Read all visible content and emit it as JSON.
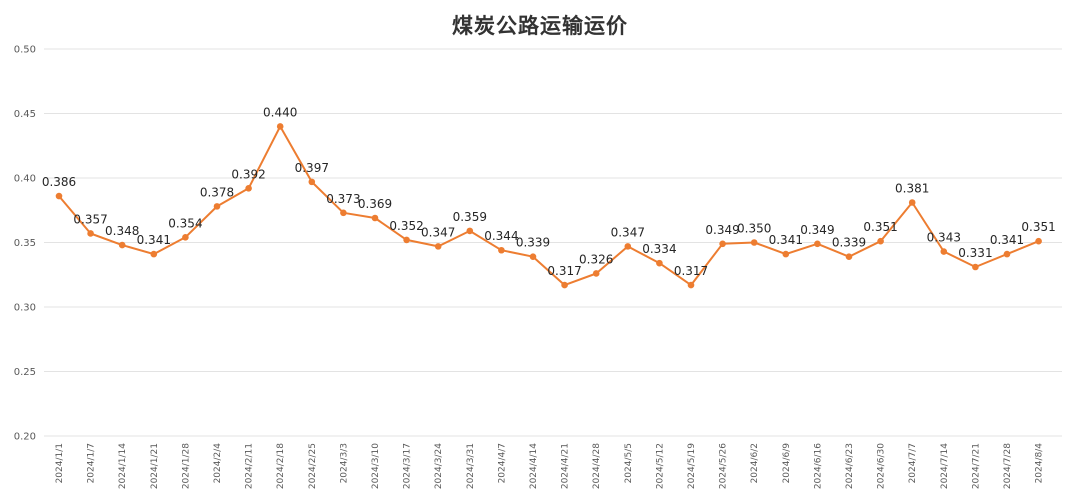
{
  "chart_data": {
    "type": "line",
    "title": "煤炭公路运输运价",
    "xlabel": "",
    "ylabel": "",
    "ylim": [
      0.2,
      0.5
    ],
    "yticks": [
      "0.50",
      "0.45",
      "0.40",
      "0.35",
      "0.30",
      "0.25",
      "0.20"
    ],
    "grid": true,
    "legend": "none",
    "color": "#ED7D31",
    "categories": [
      "2024/1/1",
      "2024/1/7",
      "2024/1/14",
      "2024/1/21",
      "2024/1/28",
      "2024/2/4",
      "2024/2/11",
      "2024/2/18",
      "2024/2/25",
      "2024/3/3",
      "2024/3/10",
      "2024/3/17",
      "2024/3/24",
      "2024/3/31",
      "2024/4/7",
      "2024/4/14",
      "2024/4/21",
      "2024/4/28",
      "2024/5/5",
      "2024/5/12",
      "2024/5/19",
      "2024/5/26",
      "2024/6/2",
      "2024/6/9",
      "2024/6/16",
      "2024/6/23",
      "2024/6/30",
      "2024/7/7",
      "2024/7/14",
      "2024/7/21",
      "2024/7/28",
      "2024/8/4"
    ],
    "values": [
      0.386,
      0.357,
      0.348,
      0.341,
      0.354,
      0.378,
      0.392,
      0.44,
      0.397,
      0.373,
      0.369,
      0.352,
      0.347,
      0.359,
      0.344,
      0.339,
      0.317,
      0.326,
      0.347,
      0.334,
      0.317,
      0.349,
      0.35,
      0.341,
      0.349,
      0.339,
      0.351,
      0.381,
      0.343,
      0.331,
      0.341,
      0.351
    ],
    "labels": [
      "0.386",
      "0.357",
      "0.348",
      "0.341",
      "0.354",
      "0.378",
      "0.392",
      "0.440",
      "0.397",
      "0.373",
      "0.369",
      "0.352",
      "0.347",
      "0.359",
      "0.344",
      "0.339",
      "0.317",
      "0.326",
      "0.347",
      "0.334",
      "0.317",
      "0.349",
      "0.350",
      "0.341",
      "0.349",
      "0.339",
      "0.351",
      "0.381",
      "0.343",
      "0.331",
      "0.341",
      "0.351"
    ]
  }
}
